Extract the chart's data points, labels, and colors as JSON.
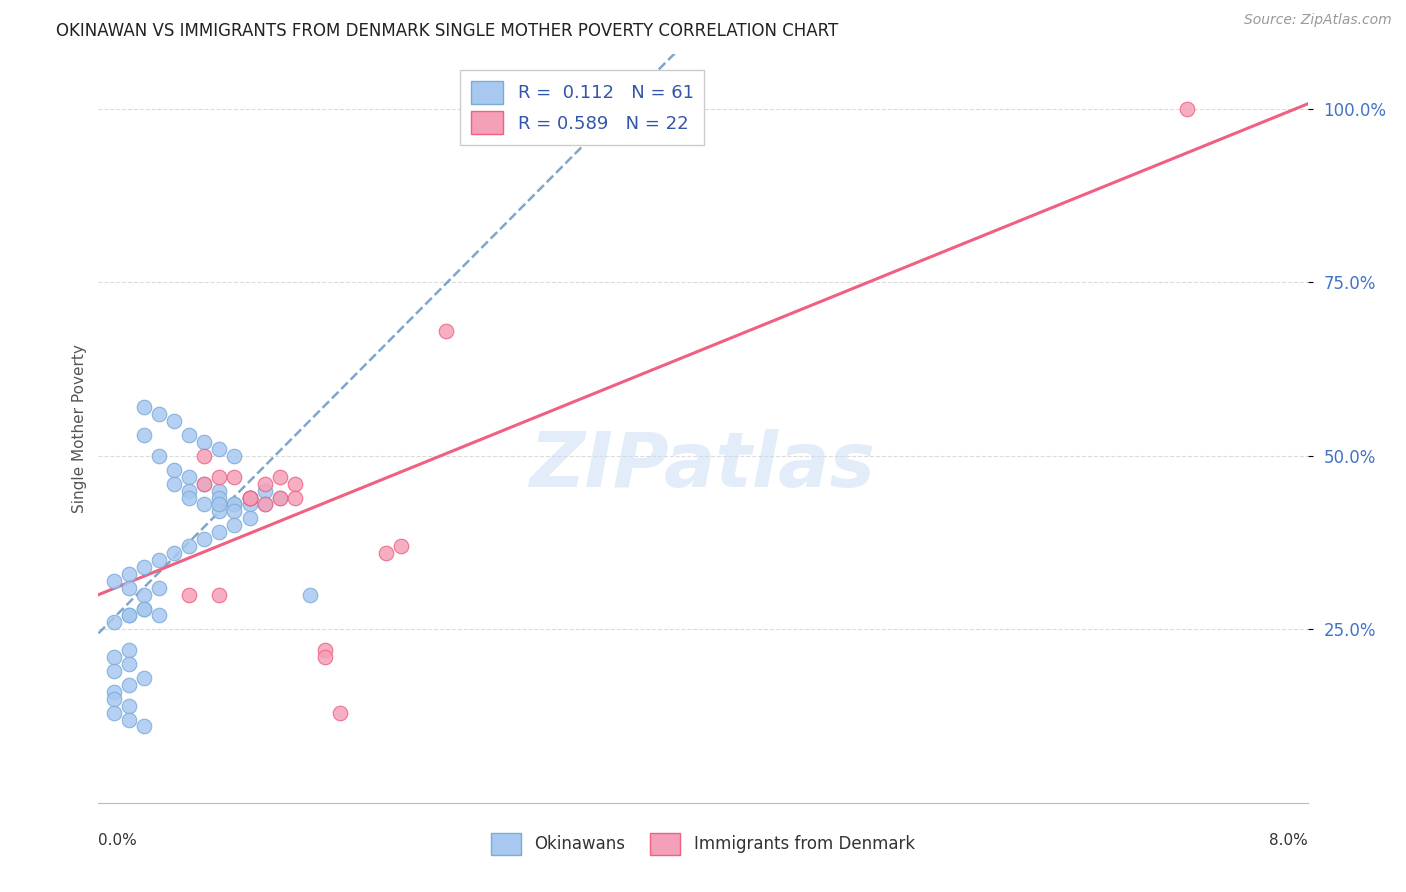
{
  "title": "OKINAWAN VS IMMIGRANTS FROM DENMARK SINGLE MOTHER POVERTY CORRELATION CHART",
  "source": "Source: ZipAtlas.com",
  "ylabel": "Single Mother Poverty",
  "okinawan_color": "#a8c8f0",
  "denmark_color": "#f4a0b8",
  "okinawan_edge_color": "#7aaad8",
  "denmark_edge_color": "#f06080",
  "okinawan_line_color": "#5588bb",
  "denmark_line_color": "#f06080",
  "watermark": "ZIPatlas",
  "okinawan_R": 0.112,
  "okinawan_N": 61,
  "denmark_R": 0.589,
  "denmark_N": 22,
  "xlim": [
    0,
    0.08
  ],
  "ylim": [
    0,
    1.08
  ],
  "ytick_positions": [
    0.25,
    0.5,
    0.75,
    1.0
  ],
  "ytick_labels": [
    "25.0%",
    "50.0%",
    "75.0%",
    "100.0%"
  ],
  "okinawan_x": [
    0.003,
    0.003,
    0.004,
    0.005,
    0.006,
    0.007,
    0.008,
    0.009,
    0.004,
    0.005,
    0.006,
    0.005,
    0.006,
    0.007,
    0.008,
    0.006,
    0.007,
    0.008,
    0.009,
    0.01,
    0.011,
    0.01,
    0.008,
    0.009,
    0.01,
    0.008,
    0.009,
    0.011,
    0.012,
    0.009,
    0.01,
    0.008,
    0.007,
    0.006,
    0.005,
    0.004,
    0.003,
    0.002,
    0.001,
    0.002,
    0.003,
    0.004,
    0.003,
    0.002,
    0.001,
    0.002,
    0.003,
    0.004,
    0.002,
    0.001,
    0.002,
    0.001,
    0.003,
    0.002,
    0.001,
    0.001,
    0.002,
    0.001,
    0.002,
    0.003,
    0.014
  ],
  "okinawan_y": [
    0.57,
    0.53,
    0.56,
    0.55,
    0.53,
    0.52,
    0.51,
    0.5,
    0.5,
    0.48,
    0.47,
    0.46,
    0.45,
    0.46,
    0.45,
    0.44,
    0.43,
    0.44,
    0.43,
    0.44,
    0.45,
    0.43,
    0.42,
    0.43,
    0.44,
    0.43,
    0.42,
    0.43,
    0.44,
    0.4,
    0.41,
    0.39,
    0.38,
    0.37,
    0.36,
    0.35,
    0.34,
    0.33,
    0.32,
    0.31,
    0.3,
    0.31,
    0.28,
    0.27,
    0.26,
    0.27,
    0.28,
    0.27,
    0.22,
    0.21,
    0.2,
    0.19,
    0.18,
    0.17,
    0.16,
    0.15,
    0.14,
    0.13,
    0.12,
    0.11,
    0.3
  ],
  "denmark_x": [
    0.006,
    0.007,
    0.007,
    0.008,
    0.009,
    0.01,
    0.01,
    0.01,
    0.011,
    0.011,
    0.012,
    0.012,
    0.013,
    0.013,
    0.015,
    0.015,
    0.016,
    0.019,
    0.02,
    0.023,
    0.072,
    0.008
  ],
  "denmark_y": [
    0.3,
    0.46,
    0.5,
    0.47,
    0.47,
    0.44,
    0.44,
    0.44,
    0.46,
    0.43,
    0.47,
    0.44,
    0.46,
    0.44,
    0.22,
    0.21,
    0.13,
    0.36,
    0.37,
    0.68,
    1.0,
    0.3
  ]
}
